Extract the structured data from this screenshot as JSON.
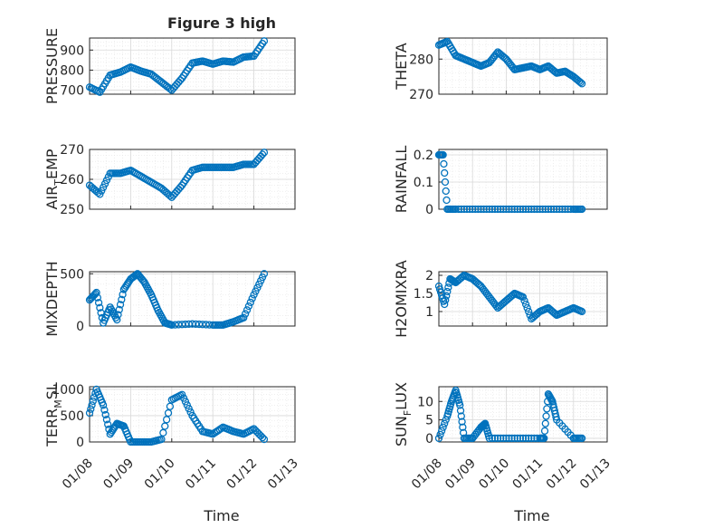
{
  "figure_title": "Figure 3 high",
  "colors": {
    "marker": "#0072BD",
    "axis": "#262626",
    "grid": "#d9d9d9"
  },
  "x_ticks": [
    "01/08",
    "01/09",
    "01/10",
    "01/11",
    "01/12",
    "01/13"
  ],
  "chart_data": [
    {
      "type": "scatter",
      "ylabel": "PRESSURE",
      "ylim": [
        680,
        960
      ],
      "yticks": [
        "700",
        "800",
        "900"
      ],
      "ytick_values": [
        700,
        800,
        900
      ],
      "grid": true,
      "x": [
        "2019-01-08",
        "2019-01-08 06:00",
        "2019-01-08 12:00",
        "2019-01-08 18:00",
        "2019-01-09",
        "2019-01-09 06:00",
        "2019-01-09 12:00",
        "2019-01-09 18:00",
        "2019-01-10",
        "2019-01-10 06:00",
        "2019-01-10 12:00",
        "2019-01-10 18:00",
        "2019-01-11",
        "2019-01-11 06:00",
        "2019-01-11 12:00",
        "2019-01-11 18:00",
        "2019-01-12",
        "2019-01-12 06:00"
      ],
      "y": [
        715,
        690,
        775,
        790,
        815,
        795,
        780,
        740,
        700,
        760,
        835,
        845,
        830,
        845,
        840,
        865,
        870,
        945
      ]
    },
    {
      "type": "scatter",
      "ylabel": "THETA",
      "ylim": [
        270,
        286
      ],
      "yticks": [
        "270",
        "280"
      ],
      "ytick_values": [
        270,
        280
      ],
      "grid": true,
      "x": [
        "2019-01-08",
        "2019-01-08 06:00",
        "2019-01-08 12:00",
        "2019-01-08 18:00",
        "2019-01-09",
        "2019-01-09 06:00",
        "2019-01-09 12:00",
        "2019-01-09 18:00",
        "2019-01-10",
        "2019-01-10 06:00",
        "2019-01-10 12:00",
        "2019-01-10 18:00",
        "2019-01-11",
        "2019-01-11 06:00",
        "2019-01-11 12:00",
        "2019-01-11 18:00",
        "2019-01-12",
        "2019-01-12 06:00"
      ],
      "y": [
        284,
        285,
        281,
        280,
        279,
        278,
        279,
        282,
        280,
        277,
        277.5,
        278,
        277,
        278,
        276,
        276.5,
        275,
        273
      ]
    },
    {
      "type": "scatter",
      "ylabel": "AIR_TEMP",
      "ylim": [
        250,
        270
      ],
      "yticks": [
        "250",
        "260",
        "270"
      ],
      "ytick_values": [
        250,
        260,
        270
      ],
      "grid": true,
      "x": [
        "2019-01-08",
        "2019-01-08 06:00",
        "2019-01-08 12:00",
        "2019-01-08 18:00",
        "2019-01-09",
        "2019-01-09 06:00",
        "2019-01-09 12:00",
        "2019-01-09 18:00",
        "2019-01-10",
        "2019-01-10 06:00",
        "2019-01-10 12:00",
        "2019-01-10 18:00",
        "2019-01-11",
        "2019-01-11 06:00",
        "2019-01-11 12:00",
        "2019-01-11 18:00",
        "2019-01-12",
        "2019-01-12 06:00"
      ],
      "y": [
        258,
        255,
        262,
        262,
        263,
        261,
        259,
        257,
        254,
        258,
        263,
        264,
        264,
        264,
        264,
        265,
        265,
        269
      ]
    },
    {
      "type": "scatter",
      "ylabel": "RAINFALL",
      "ylim": [
        0,
        0.22
      ],
      "yticks": [
        "0",
        "0.1",
        "0.2"
      ],
      "ytick_values": [
        0,
        0.1,
        0.2
      ],
      "grid": true,
      "x": [
        "2019-01-08",
        "2019-01-08 03:00",
        "2019-01-08 06:00",
        "2019-01-08 12:00",
        "2019-01-09",
        "2019-01-09 12:00",
        "2019-01-10",
        "2019-01-10 12:00",
        "2019-01-11",
        "2019-01-11 12:00",
        "2019-01-12",
        "2019-01-12 06:00"
      ],
      "y": [
        0.2,
        0.2,
        0,
        0,
        0,
        0,
        0,
        0,
        0,
        0,
        0,
        0
      ]
    },
    {
      "type": "scatter",
      "ylabel": "MIXDEPTH",
      "ylim": [
        0,
        520
      ],
      "yticks": [
        "0",
        "500"
      ],
      "ytick_values": [
        0,
        500
      ],
      "grid": true,
      "x": [
        "2019-01-08",
        "2019-01-08 04:00",
        "2019-01-08 08:00",
        "2019-01-08 12:00",
        "2019-01-08 16:00",
        "2019-01-08 20:00",
        "2019-01-09",
        "2019-01-09 04:00",
        "2019-01-09 08:00",
        "2019-01-09 12:00",
        "2019-01-09 16:00",
        "2019-01-09 20:00",
        "2019-01-10",
        "2019-01-10 12:00",
        "2019-01-11",
        "2019-01-11 06:00",
        "2019-01-11 12:00",
        "2019-01-11 18:00",
        "2019-01-12",
        "2019-01-12 06:00"
      ],
      "y": [
        250,
        320,
        30,
        180,
        60,
        350,
        450,
        500,
        420,
        300,
        150,
        30,
        10,
        20,
        10,
        10,
        40,
        80,
        300,
        500
      ]
    },
    {
      "type": "scatter",
      "ylabel": "H2OMIXRA",
      "ylim": [
        0.6,
        2.1
      ],
      "yticks": [
        "1",
        "1.5",
        "2"
      ],
      "ytick_values": [
        1,
        1.5,
        2
      ],
      "grid": true,
      "x": [
        "2019-01-08",
        "2019-01-08 04:00",
        "2019-01-08 08:00",
        "2019-01-08 12:00",
        "2019-01-08 18:00",
        "2019-01-09",
        "2019-01-09 06:00",
        "2019-01-09 12:00",
        "2019-01-09 18:00",
        "2019-01-10",
        "2019-01-10 06:00",
        "2019-01-10 12:00",
        "2019-01-10 18:00",
        "2019-01-11",
        "2019-01-11 06:00",
        "2019-01-11 12:00",
        "2019-01-11 18:00",
        "2019-01-12",
        "2019-01-12 06:00"
      ],
      "y": [
        1.7,
        1.2,
        1.9,
        1.8,
        2.0,
        1.9,
        1.7,
        1.4,
        1.1,
        1.3,
        1.5,
        1.4,
        0.8,
        1.0,
        1.1,
        0.9,
        1.0,
        1.1,
        1.0
      ]
    },
    {
      "type": "scatter",
      "ylabel": "TERR_MSL",
      "ylim": [
        0,
        1050
      ],
      "yticks": [
        "0",
        "500",
        "1000"
      ],
      "ytick_values": [
        0,
        500,
        1000
      ],
      "grid": true,
      "x": [
        "2019-01-08",
        "2019-01-08 04:00",
        "2019-01-08 08:00",
        "2019-01-08 12:00",
        "2019-01-08 16:00",
        "2019-01-08 20:00",
        "2019-01-09",
        "2019-01-09 06:00",
        "2019-01-09 12:00",
        "2019-01-09 18:00",
        "2019-01-10",
        "2019-01-10 06:00",
        "2019-01-10 12:00",
        "2019-01-10 18:00",
        "2019-01-11",
        "2019-01-11 06:00",
        "2019-01-11 12:00",
        "2019-01-11 18:00",
        "2019-01-12",
        "2019-01-12 06:00"
      ],
      "y": [
        550,
        1000,
        700,
        150,
        350,
        300,
        0,
        0,
        0,
        50,
        800,
        900,
        500,
        200,
        150,
        280,
        200,
        150,
        250,
        50
      ]
    },
    {
      "type": "scatter",
      "ylabel": "SUN_FLUX",
      "ylim": [
        -1,
        14
      ],
      "yticks": [
        "0",
        "5",
        "10"
      ],
      "ytick_values": [
        0,
        5,
        10
      ],
      "grid": true,
      "x": [
        "2019-01-08",
        "2019-01-08 06:00",
        "2019-01-08 09:00",
        "2019-01-08 12:00",
        "2019-01-08 15:00",
        "2019-01-08 18:00",
        "2019-01-09",
        "2019-01-09 06:00",
        "2019-01-09 09:00",
        "2019-01-09 12:00",
        "2019-01-10",
        "2019-01-10 12:00",
        "2019-01-11",
        "2019-01-11 03:00",
        "2019-01-11 06:00",
        "2019-01-11 09:00",
        "2019-01-11 12:00",
        "2019-01-12",
        "2019-01-12 06:00"
      ],
      "y": [
        0,
        6,
        10,
        13,
        9,
        0,
        0,
        3,
        4,
        0,
        0,
        0,
        0,
        0,
        12,
        10,
        5,
        0,
        0
      ]
    }
  ],
  "xlabel": "Time"
}
